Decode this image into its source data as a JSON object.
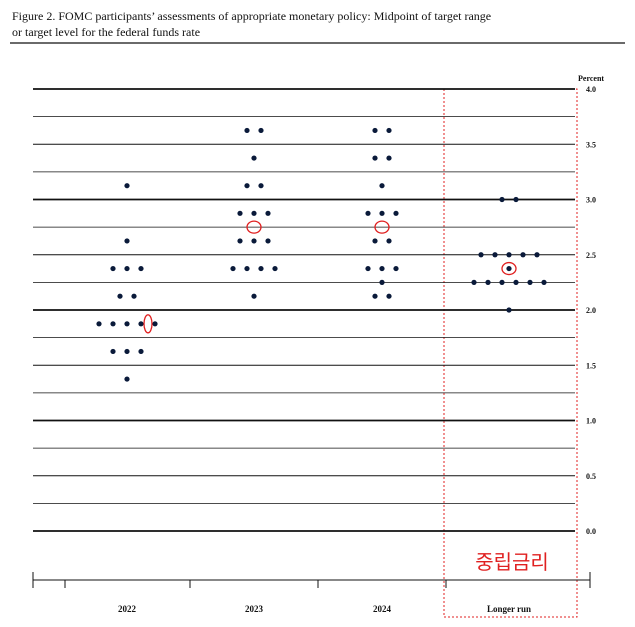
{
  "chart_data": {
    "type": "dotplot",
    "title": "Figure 2.  FOMC participants’ assessments of appropriate monetary policy:  Midpoint of target range",
    "subtitle": "or target level for the federal funds rate",
    "y_label": "Percent",
    "annotation": "중립금리",
    "categories": [
      "2022",
      "2023",
      "2024",
      "Longer run"
    ],
    "dots": [
      {
        "values": [
          3.125,
          2.625,
          2.375,
          2.125,
          1.875,
          1.625,
          1.375
        ],
        "counts": [
          1,
          1,
          3,
          2,
          5,
          3,
          1
        ]
      },
      {
        "values": [
          3.625,
          3.375,
          3.125,
          2.875,
          2.625,
          2.375,
          2.125
        ],
        "counts": [
          2,
          1,
          2,
          3,
          3,
          4,
          1
        ]
      },
      {
        "values": [
          3.625,
          3.375,
          3.125,
          2.875,
          2.625,
          2.375,
          2.25,
          2.125
        ],
        "counts": [
          2,
          2,
          1,
          3,
          2,
          3,
          1,
          2
        ]
      },
      {
        "values": [
          3.0,
          2.5,
          2.375,
          2.25,
          2.0
        ],
        "counts": [
          2,
          5,
          1,
          6,
          1
        ]
      }
    ],
    "medians": [
      1.875,
      2.75,
      2.75,
      2.375
    ],
    "color": "#0a1a3a",
    "median_color": "#e02020",
    "ylim": [
      0,
      4
    ],
    "yticks": [
      {
        "value": 0,
        "label": "0.0"
      },
      {
        "value": 0.5,
        "label": "0.5"
      },
      {
        "value": 1,
        "label": "1.0"
      },
      {
        "value": 1.5,
        "label": "1.5"
      },
      {
        "value": 2,
        "label": "2.0"
      },
      {
        "value": 2.5,
        "label": "2.5"
      },
      {
        "value": 3,
        "label": "3.0"
      },
      {
        "value": 3.5,
        "label": "3.5"
      },
      {
        "value": 4,
        "label": "4.0"
      }
    ],
    "grid": true
  }
}
